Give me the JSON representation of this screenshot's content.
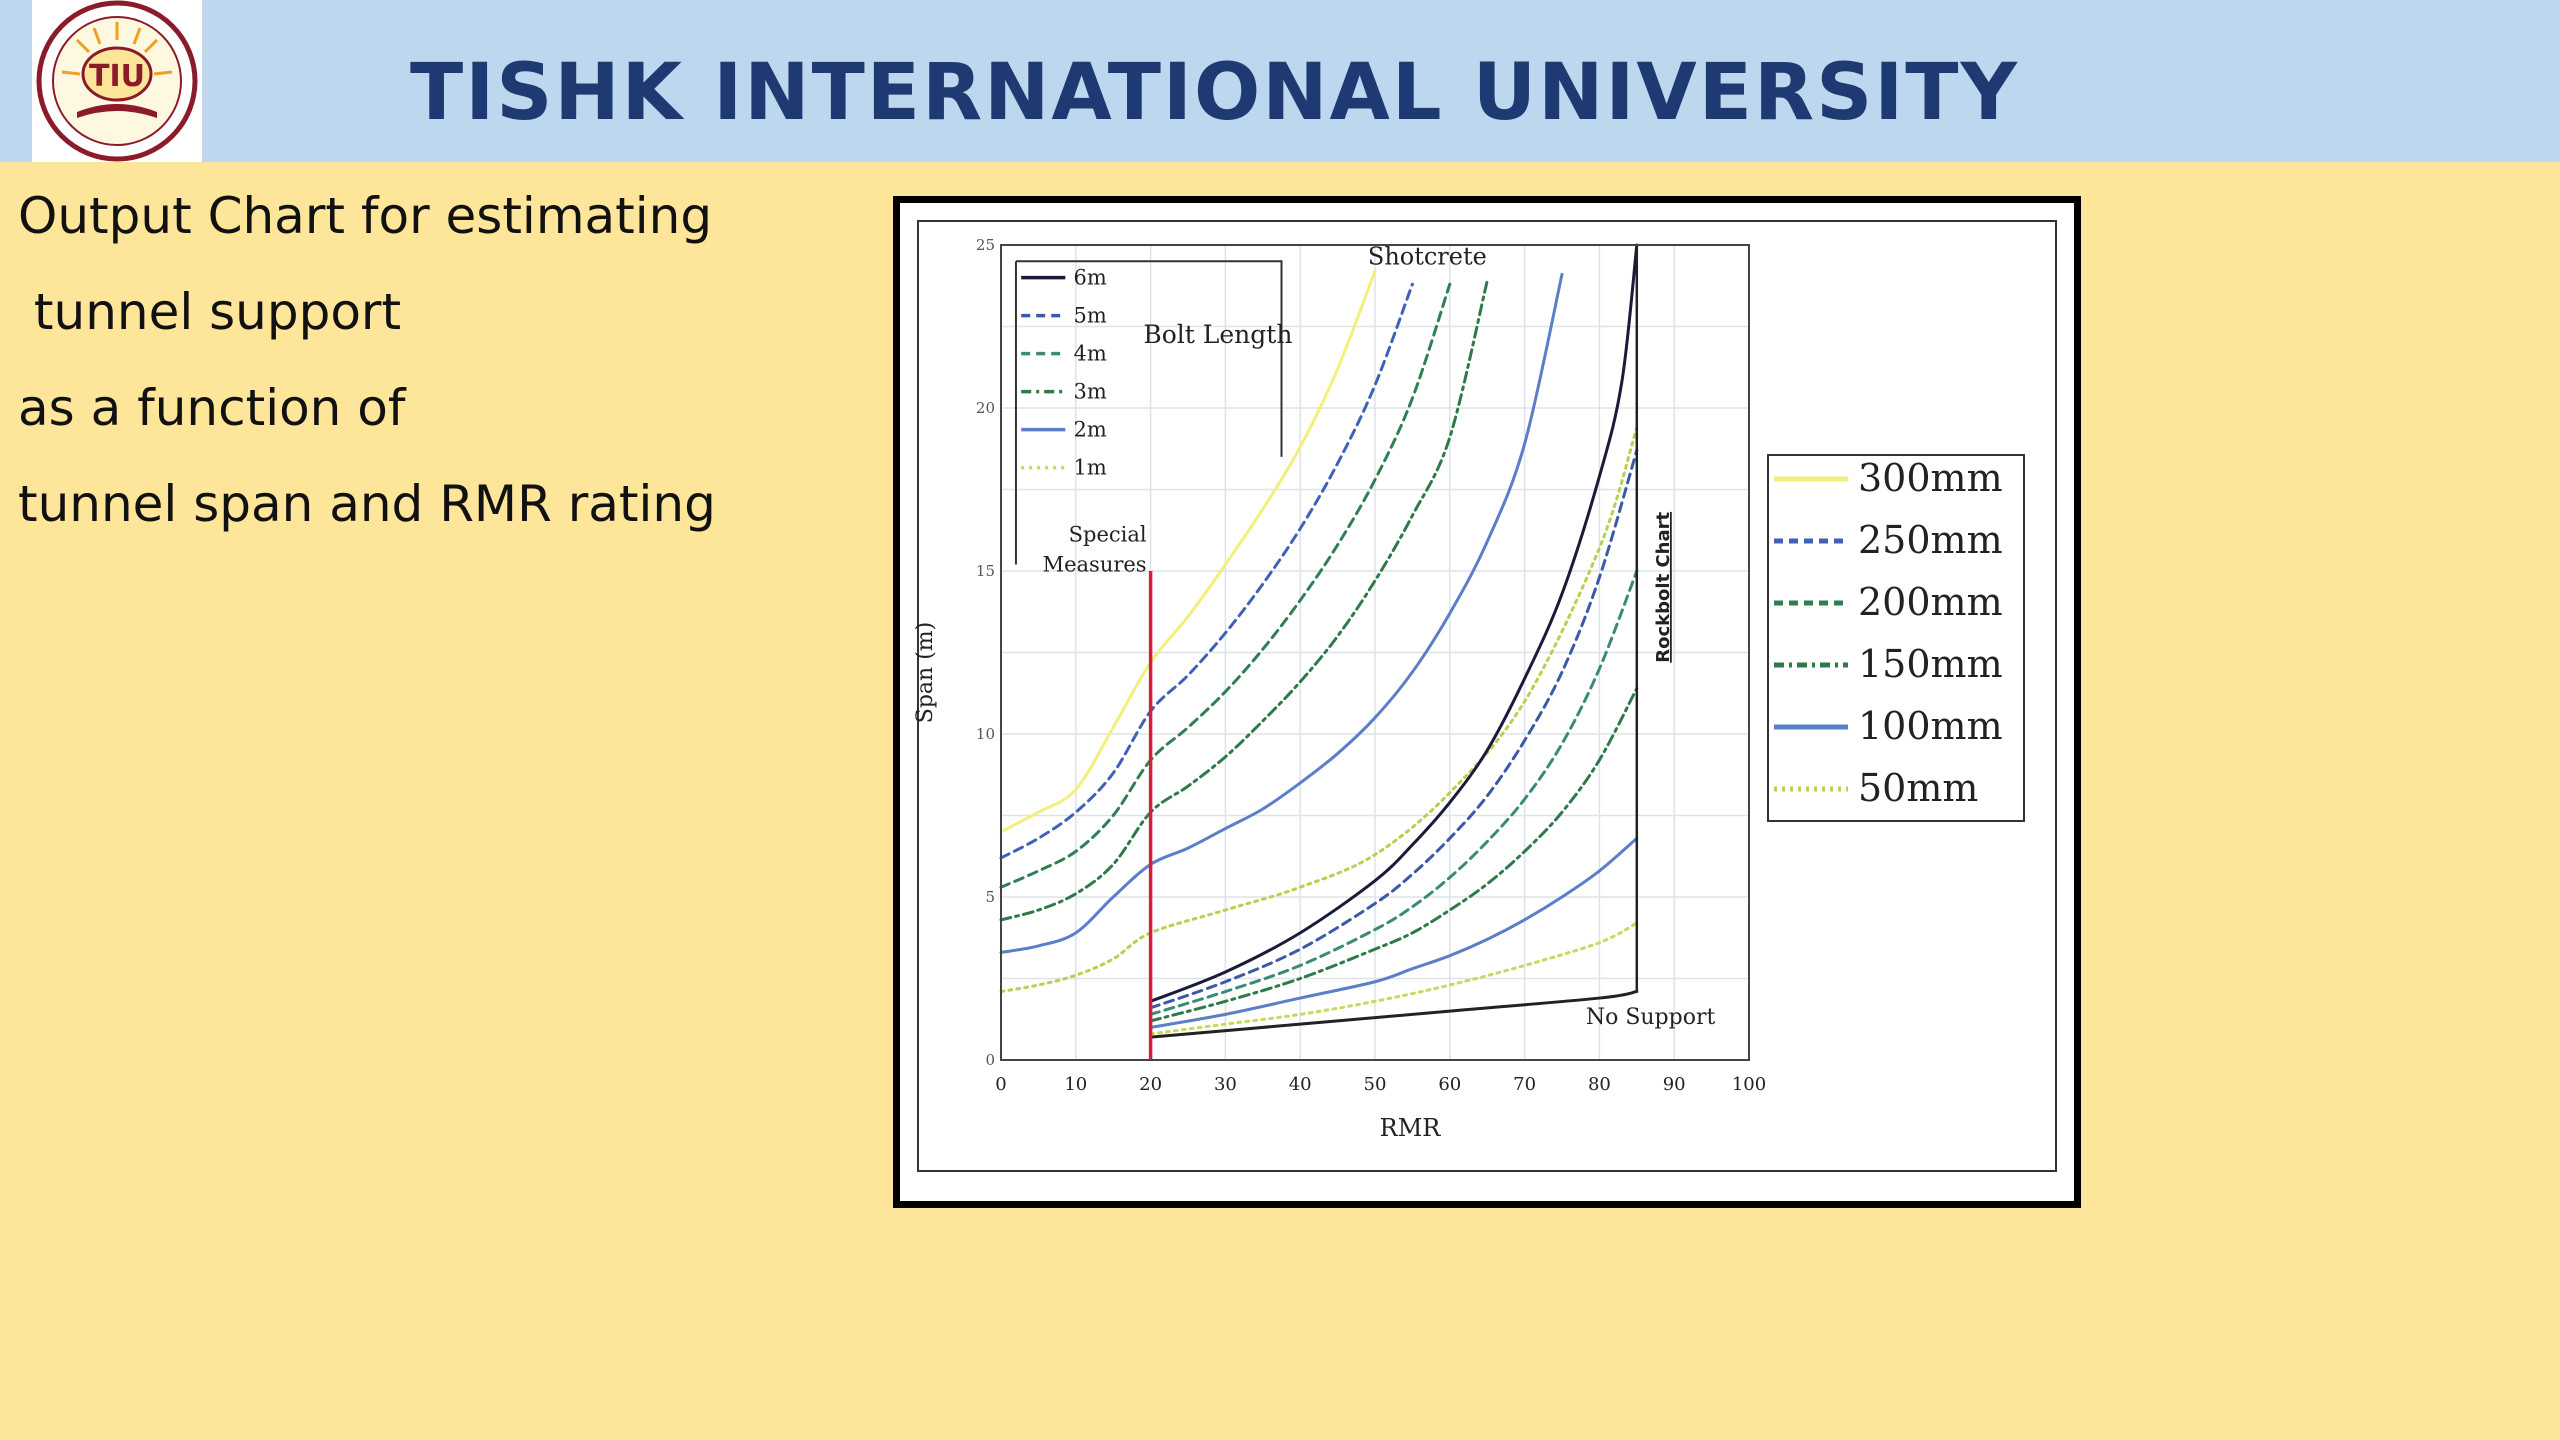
{
  "header": {
    "university_name": "TISHK INTERNATIONAL UNIVERSITY",
    "logo_text": "TIU"
  },
  "description": {
    "lines": [
      "Output Chart for estimating",
      " tunnel support",
      "as a function of",
      "tunnel span and RMR rating"
    ]
  },
  "chart_data": {
    "type": "line",
    "xlabel": "RMR",
    "ylabel": "Span (m)",
    "xlim": [
      0,
      100
    ],
    "ylim": [
      0,
      25
    ],
    "x_ticks": [
      0,
      10,
      20,
      30,
      40,
      50,
      60,
      70,
      80,
      90,
      100
    ],
    "y_ticks": [
      0,
      5,
      10,
      15,
      20,
      25
    ],
    "grid": true,
    "region_labels": [
      "Shotcrete",
      "No Support",
      "Rockbolt Chart"
    ],
    "special_measures": {
      "label": "Special\nMeasures",
      "x": 20,
      "color": "#d0203a"
    },
    "bolt_length_legend": {
      "title": "Bolt Length",
      "entries": [
        {
          "label": "6m",
          "color": "#1a1a3a",
          "dash": "solid"
        },
        {
          "label": "5m",
          "color": "#3a5aa8",
          "dash": "dashed"
        },
        {
          "label": "4m",
          "color": "#3a8a78",
          "dash": "dashed"
        },
        {
          "label": "3m",
          "color": "#2e7a4a",
          "dash": "dashdot"
        },
        {
          "label": "2m",
          "color": "#5a7ec8",
          "dash": "solid"
        },
        {
          "label": "1m",
          "color": "#c8d860",
          "dash": "dotted"
        }
      ]
    },
    "shotcrete_legend": {
      "entries": [
        {
          "label": "300mm",
          "color": "#f2f07a",
          "dash": "solid"
        },
        {
          "label": "250mm",
          "color": "#3f61b8",
          "dash": "dashed"
        },
        {
          "label": "200mm",
          "color": "#2f7f55",
          "dash": "dashed"
        },
        {
          "label": "150mm",
          "color": "#2e7a4a",
          "dash": "dashdot"
        },
        {
          "label": "100mm",
          "color": "#5a7ec8",
          "dash": "solid"
        },
        {
          "label": "50mm",
          "color": "#b8d050",
          "dash": "dotted"
        }
      ]
    },
    "series": [
      {
        "name": "300mm",
        "color": "#f2f07a",
        "dash": "solid",
        "x": [
          0,
          5,
          10,
          15,
          20,
          25,
          30,
          35,
          40,
          45,
          50
        ],
        "y": [
          7.0,
          7.6,
          8.3,
          10.2,
          12.2,
          13.6,
          15.2,
          16.9,
          18.8,
          21.2,
          24.2
        ]
      },
      {
        "name": "250mm",
        "color": "#3f61b8",
        "dash": "dashed",
        "x": [
          0,
          5,
          10,
          15,
          20,
          25,
          30,
          35,
          40,
          45,
          50,
          55
        ],
        "y": [
          6.2,
          6.8,
          7.6,
          8.8,
          10.7,
          11.8,
          13.1,
          14.6,
          16.3,
          18.3,
          20.7,
          23.8
        ]
      },
      {
        "name": "200mm",
        "color": "#2f7f55",
        "dash": "dashed",
        "x": [
          0,
          5,
          10,
          15,
          20,
          25,
          30,
          35,
          40,
          45,
          50,
          55,
          60
        ],
        "y": [
          5.3,
          5.8,
          6.4,
          7.5,
          9.2,
          10.2,
          11.3,
          12.6,
          14.1,
          15.8,
          17.8,
          20.3,
          23.8
        ]
      },
      {
        "name": "150mm",
        "color": "#2e7a4a",
        "dash": "dashdot",
        "x": [
          0,
          5,
          10,
          15,
          20,
          25,
          30,
          35,
          40,
          45,
          50,
          55,
          60,
          65
        ],
        "y": [
          4.3,
          4.6,
          5.1,
          6.0,
          7.6,
          8.4,
          9.3,
          10.4,
          11.6,
          13.0,
          14.7,
          16.7,
          19.1,
          23.9
        ]
      },
      {
        "name": "100mm",
        "color": "#5a7ec8",
        "dash": "solid",
        "x": [
          0,
          5,
          10,
          15,
          20,
          25,
          30,
          35,
          40,
          45,
          50,
          55,
          60,
          65,
          70,
          75
        ],
        "y": [
          3.3,
          3.5,
          3.9,
          5.0,
          6.0,
          6.5,
          7.1,
          7.7,
          8.5,
          9.4,
          10.5,
          11.9,
          13.7,
          15.9,
          18.9,
          24.1
        ]
      },
      {
        "name": "50mm",
        "color": "#b8d050",
        "dash": "dotted",
        "x": [
          0,
          5,
          10,
          15,
          20,
          30,
          40,
          50,
          60,
          70,
          80,
          85
        ],
        "y": [
          2.1,
          2.3,
          2.6,
          3.1,
          3.9,
          4.6,
          5.3,
          6.3,
          8.2,
          11.0,
          15.7,
          19.4
        ]
      },
      {
        "name": "6m",
        "color": "#1a1a3a",
        "dash": "solid",
        "x": [
          20,
          30,
          40,
          50,
          55,
          60,
          65,
          70,
          75,
          80,
          83,
          85
        ],
        "y": [
          1.8,
          2.7,
          3.9,
          5.5,
          6.6,
          7.9,
          9.5,
          11.7,
          14.3,
          17.9,
          20.8,
          25.0
        ]
      },
      {
        "name": "5m",
        "color": "#3a5aa8",
        "dash": "dashed",
        "x": [
          20,
          30,
          40,
          50,
          55,
          60,
          65,
          70,
          75,
          80,
          85
        ],
        "y": [
          1.6,
          2.4,
          3.4,
          4.8,
          5.7,
          6.8,
          8.1,
          9.8,
          11.9,
          14.8,
          18.7
        ]
      },
      {
        "name": "4m",
        "color": "#3a8a78",
        "dash": "dashed",
        "x": [
          20,
          30,
          40,
          50,
          55,
          60,
          65,
          70,
          75,
          80,
          85
        ],
        "y": [
          1.4,
          2.1,
          2.9,
          4.0,
          4.7,
          5.6,
          6.7,
          8.0,
          9.7,
          12.0,
          15.0
        ]
      },
      {
        "name": "3m",
        "color": "#2e7a4a",
        "dash": "dashdot",
        "x": [
          20,
          30,
          40,
          50,
          55,
          60,
          65,
          70,
          75,
          80,
          85
        ],
        "y": [
          1.2,
          1.8,
          2.5,
          3.4,
          3.9,
          4.6,
          5.4,
          6.4,
          7.6,
          9.2,
          11.4
        ]
      },
      {
        "name": "2m",
        "color": "#5a7ec8",
        "dash": "solid",
        "x": [
          20,
          30,
          40,
          50,
          55,
          60,
          65,
          70,
          75,
          80,
          85
        ],
        "y": [
          1.0,
          1.4,
          1.9,
          2.4,
          2.8,
          3.2,
          3.7,
          4.3,
          5.0,
          5.8,
          6.8
        ]
      },
      {
        "name": "1m",
        "color": "#c8d860",
        "dash": "dotted",
        "x": [
          20,
          30,
          40,
          50,
          60,
          70,
          80,
          85
        ],
        "y": [
          0.8,
          1.1,
          1.4,
          1.8,
          2.3,
          2.9,
          3.6,
          4.2
        ]
      },
      {
        "name": "No Support",
        "color": "#222222",
        "dash": "solid",
        "x": [
          20,
          40,
          60,
          80,
          85
        ],
        "y": [
          0.7,
          1.1,
          1.5,
          1.9,
          2.1
        ]
      }
    ]
  }
}
